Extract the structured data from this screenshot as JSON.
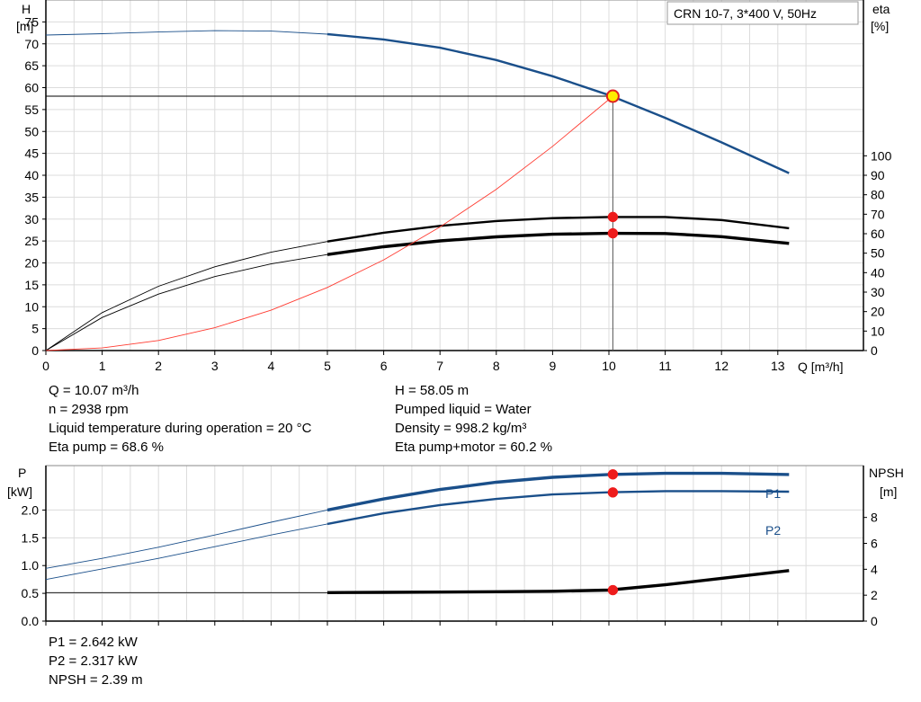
{
  "legend_box": "CRN 10-7, 3*400 V, 50Hz",
  "upper_chart": {
    "left_axis_label": [
      "H",
      "[m]"
    ],
    "right_axis_label": [
      "eta",
      "[%]"
    ],
    "x_axis_label": "Q [m³/h]"
  },
  "lower_chart": {
    "left_axis_label": [
      "P",
      "[kW]"
    ],
    "right_axis_label": [
      "NPSH",
      "[m]"
    ],
    "series_label_p1": "P1",
    "series_label_p2": "P2"
  },
  "info": {
    "left_lines": [
      "Q = 10.07 m³/h",
      "n = 2938 rpm",
      "Liquid temperature during operation = 20 °C",
      "Eta pump = 68.6 %"
    ],
    "right_lines": [
      "H = 58.05 m",
      "Pumped liquid = Water",
      "Density = 998.2 kg/m³",
      "Eta pump+motor = 60.2 %"
    ],
    "bottom_lines": [
      "P1 = 2.642 kW",
      "P2 = 2.317 kW",
      "NPSH = 2.39 m"
    ]
  },
  "chart_data": [
    {
      "type": "line",
      "x_ticks": [
        0,
        1,
        2,
        3,
        4,
        5,
        6,
        7,
        8,
        9,
        10,
        11,
        12,
        13
      ],
      "xlim": [
        0,
        14
      ],
      "ylim_left": [
        0,
        80
      ],
      "y_ticks_left": [
        0,
        5,
        10,
        15,
        20,
        25,
        30,
        35,
        40,
        45,
        50,
        55,
        60,
        65,
        70,
        75
      ],
      "ylim_right": [
        0,
        180
      ],
      "y_ticks_right": [
        0,
        10,
        20,
        30,
        40,
        50,
        60,
        70,
        80,
        90,
        100
      ],
      "grid": true,
      "duty_point": {
        "q": 10.07,
        "h": 58.05
      },
      "series": [
        {
          "axis": "left",
          "color": "#1a4f8a",
          "x": [
            0,
            1,
            2,
            3,
            4,
            5,
            6,
            7,
            8,
            9,
            10,
            11,
            12,
            13.2
          ],
          "y": [
            72,
            72.3,
            72.7,
            73,
            72.9,
            72.2,
            71,
            69.1,
            66.3,
            62.6,
            58.3,
            53.1,
            47.5,
            40.5
          ],
          "thin_until": 5
        },
        {
          "axis": "right",
          "color": "#000000",
          "x": [
            0,
            1,
            2,
            3,
            4,
            5,
            6,
            7,
            8,
            9,
            10,
            11,
            12,
            13.2
          ],
          "y": [
            0,
            19.5,
            33,
            43,
            50.5,
            56,
            60.5,
            64,
            66.5,
            68,
            68.6,
            68.6,
            67,
            62.8
          ],
          "thin_until": 5
        },
        {
          "axis": "right",
          "color": "#000000",
          "x": [
            0,
            1,
            2,
            3,
            4,
            5,
            6,
            7,
            8,
            9,
            10,
            11,
            12,
            13.2
          ],
          "y": [
            0,
            17,
            29,
            38,
            44.5,
            49.3,
            53.3,
            56.3,
            58.4,
            59.7,
            60.2,
            60.1,
            58.5,
            55
          ],
          "thin_until": 5,
          "bold": true
        },
        {
          "axis": "left",
          "color": "#ff3c32",
          "x": [
            0,
            1,
            2,
            3,
            4,
            5,
            6,
            7,
            8,
            9,
            10.07
          ],
          "y": [
            0,
            0.6,
            2.3,
            5.2,
            9.2,
            14.4,
            20.7,
            28.2,
            36.8,
            46.6,
            58.05
          ],
          "thin_until": 99
        }
      ],
      "markers": [
        {
          "axis": "right",
          "x": 10.07,
          "y": 68.6
        },
        {
          "axis": "right",
          "x": 10.07,
          "y": 60.2
        }
      ]
    },
    {
      "type": "line",
      "x_ticks": [
        0,
        1,
        2,
        3,
        4,
        5,
        6,
        7,
        8,
        9,
        10,
        11,
        12,
        13
      ],
      "xlim": [
        0,
        14
      ],
      "ylim_left": [
        0,
        2.8
      ],
      "y_ticks_left": [
        0.0,
        0.5,
        1.0,
        1.5,
        2.0
      ],
      "y_tick_labels_left": [
        "0.0",
        "0.5",
        "1.0",
        "1.5",
        "2.0"
      ],
      "ylim_right": [
        0,
        12
      ],
      "y_ticks_right": [
        0,
        2,
        4,
        6,
        8
      ],
      "grid": true,
      "series": [
        {
          "name": "P1",
          "axis": "left",
          "color": "#1a4f8a",
          "x": [
            0,
            1,
            2,
            3,
            4,
            5,
            6,
            7,
            8,
            9,
            10,
            11,
            12,
            13.2
          ],
          "y": [
            0.95,
            1.13,
            1.33,
            1.55,
            1.78,
            2.0,
            2.2,
            2.37,
            2.5,
            2.59,
            2.64,
            2.66,
            2.66,
            2.64
          ],
          "thin_until": 5,
          "bold": true
        },
        {
          "name": "P2",
          "axis": "left",
          "color": "#1a4f8a",
          "x": [
            0,
            1,
            2,
            3,
            4,
            5,
            6,
            7,
            8,
            9,
            10,
            11,
            12,
            13.2
          ],
          "y": [
            0.75,
            0.94,
            1.13,
            1.34,
            1.55,
            1.75,
            1.94,
            2.09,
            2.2,
            2.28,
            2.32,
            2.34,
            2.34,
            2.33
          ],
          "thin_until": 5
        },
        {
          "name": "NPSH",
          "axis": "right",
          "color": "#000000",
          "x": [
            0,
            1,
            2,
            3,
            4,
            5,
            6,
            7,
            8,
            9,
            10,
            11,
            12,
            13.2
          ],
          "y": [
            2.2,
            2.2,
            2.2,
            2.2,
            2.2,
            2.2,
            2.22,
            2.24,
            2.27,
            2.3,
            2.39,
            2.8,
            3.3,
            3.9
          ],
          "thin_until": 5,
          "bold": true
        }
      ],
      "markers": [
        {
          "axis": "left",
          "x": 10.07,
          "y": 2.642
        },
        {
          "axis": "left",
          "x": 10.07,
          "y": 2.317
        },
        {
          "axis": "right",
          "x": 10.07,
          "y": 2.39
        }
      ]
    }
  ]
}
